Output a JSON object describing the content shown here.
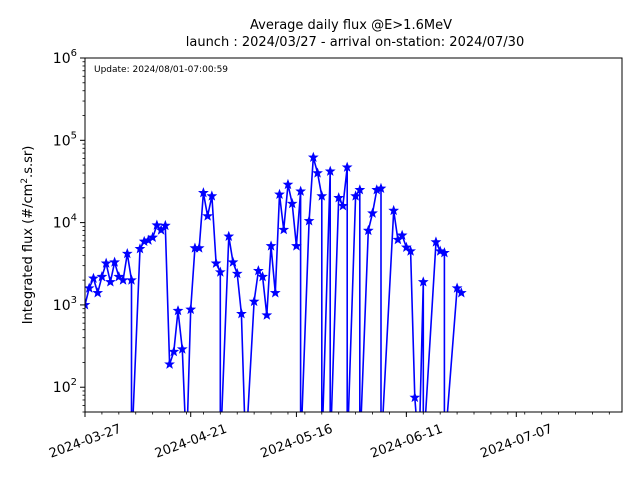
{
  "chart_data": {
    "type": "line",
    "title": "Average daily flux @E>1.6MeV",
    "subtitle": "launch : 2024/03/27 - arrival on-station: 2024/07/30",
    "annotation": "Update: 2024/08/01-07:00:59",
    "ylabel": "Integrated flux (#/cm².s.sr)",
    "ylabel_parts": {
      "before": "Integrated flux (#/cm",
      "sup": "2",
      "after": ".s.sr)"
    },
    "xlabel": "",
    "yscale": "log",
    "xlim": [
      "2024-03-27",
      "2024-08-01"
    ],
    "ylim": [
      50,
      1000000
    ],
    "y_ticks": [
      {
        "value": 100,
        "base": "10",
        "exp": "2"
      },
      {
        "value": 1000,
        "base": "10",
        "exp": "3"
      },
      {
        "value": 10000,
        "base": "10",
        "exp": "4"
      },
      {
        "value": 100000,
        "base": "10",
        "exp": "5"
      },
      {
        "value": 1000000,
        "base": "10",
        "exp": "6"
      }
    ],
    "x_ticks": [
      "2024-03-27",
      "2024-04-21",
      "2024-05-16",
      "2024-06-11",
      "2024-07-07"
    ],
    "grid": false,
    "series": [
      {
        "color": "#0000ff",
        "marker": "star",
        "points": [
          [
            "2024-03-27",
            1000
          ],
          [
            "2024-03-28",
            1600
          ],
          [
            "2024-03-29",
            2100
          ],
          [
            "2024-03-30",
            1400
          ],
          [
            "2024-03-31",
            2200
          ],
          [
            "2024-04-01",
            3200
          ],
          [
            "2024-04-02",
            1900
          ],
          [
            "2024-04-03",
            3300
          ],
          [
            "2024-04-04",
            2200
          ],
          [
            "2024-04-05",
            2000
          ],
          [
            "2024-04-06",
            4200
          ],
          [
            "2024-04-07",
            2000
          ],
          [
            "2024-04-07",
            null
          ],
          [
            "2024-04-09",
            4800
          ],
          [
            "2024-04-10",
            5900
          ],
          [
            "2024-04-11",
            6100
          ],
          [
            "2024-04-12",
            6600
          ],
          [
            "2024-04-13",
            9300
          ],
          [
            "2024-04-14",
            8100
          ],
          [
            "2024-04-15",
            9200
          ],
          [
            "2024-04-16",
            190
          ],
          [
            "2024-04-17",
            270
          ],
          [
            "2024-04-18",
            850
          ],
          [
            "2024-04-19",
            290
          ],
          [
            "2024-04-20",
            null
          ],
          [
            "2024-04-21",
            880
          ],
          [
            "2024-04-22",
            4900
          ],
          [
            "2024-04-23",
            4900
          ],
          [
            "2024-04-24",
            23000
          ],
          [
            "2024-04-25",
            12000
          ],
          [
            "2024-04-26",
            21000
          ],
          [
            "2024-04-27",
            3200
          ],
          [
            "2024-04-28",
            2500
          ],
          [
            "2024-04-28",
            null
          ],
          [
            "2024-04-30",
            6800
          ],
          [
            "2024-05-01",
            3300
          ],
          [
            "2024-05-02",
            2400
          ],
          [
            "2024-05-03",
            780
          ],
          [
            "2024-05-04",
            null
          ],
          [
            "2024-05-06",
            1100
          ],
          [
            "2024-05-07",
            2600
          ],
          [
            "2024-05-08",
            2200
          ],
          [
            "2024-05-09",
            750
          ],
          [
            "2024-05-10",
            5200
          ],
          [
            "2024-05-11",
            1400
          ],
          [
            "2024-05-12",
            22000
          ],
          [
            "2024-05-13",
            8200
          ],
          [
            "2024-05-14",
            29000
          ],
          [
            "2024-05-15",
            17000
          ],
          [
            "2024-05-16",
            5200
          ],
          [
            "2024-05-17",
            24000
          ],
          [
            "2024-05-17",
            null
          ],
          [
            "2024-05-19",
            10500
          ],
          [
            "2024-05-20",
            62000
          ],
          [
            "2024-05-21",
            40000
          ],
          [
            "2024-05-22",
            21000
          ],
          [
            "2024-05-22",
            null
          ],
          [
            "2024-05-24",
            42000
          ],
          [
            "2024-05-24",
            null
          ],
          [
            "2024-05-26",
            20000
          ],
          [
            "2024-05-27",
            16000
          ],
          [
            "2024-05-28",
            47000
          ],
          [
            "2024-05-28",
            null
          ],
          [
            "2024-05-30",
            21000
          ],
          [
            "2024-05-31",
            25000
          ],
          [
            "2024-05-31",
            null
          ],
          [
            "2024-06-02",
            8000
          ],
          [
            "2024-06-03",
            13000
          ],
          [
            "2024-06-04",
            25000
          ],
          [
            "2024-06-05",
            26000
          ],
          [
            "2024-06-05",
            null
          ],
          [
            "2024-06-08",
            14000
          ],
          [
            "2024-06-09",
            6200
          ],
          [
            "2024-06-10",
            7000
          ],
          [
            "2024-06-11",
            5000
          ],
          [
            "2024-06-12",
            4500
          ],
          [
            "2024-06-13",
            75
          ],
          [
            "2024-06-14",
            null
          ],
          [
            "2024-06-15",
            1900
          ],
          [
            "2024-06-15",
            null
          ],
          [
            "2024-06-18",
            5800
          ],
          [
            "2024-06-19",
            4500
          ],
          [
            "2024-06-20",
            4300
          ],
          [
            "2024-06-20",
            null
          ],
          [
            "2024-06-23",
            1600
          ],
          [
            "2024-06-24",
            1400
          ]
        ]
      }
    ]
  }
}
